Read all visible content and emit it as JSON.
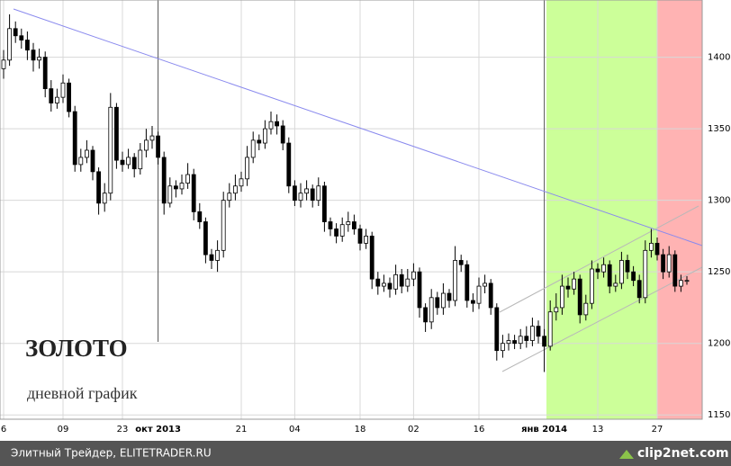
{
  "chart_data": {
    "type": "candlestick",
    "title": "ЗОЛОТО",
    "subtitle": "дневной график",
    "source": "Элитный Трейдер, ELITETRADER.RU",
    "watermark": "clip2net.com",
    "categories": [
      "6",
      null,
      null,
      null,
      null,
      null,
      null,
      null,
      null,
      null,
      "09",
      null,
      null,
      null,
      null,
      null,
      null,
      null,
      null,
      null,
      "23",
      null,
      null,
      null,
      null,
      null,
      "окт 2013",
      null,
      null,
      null,
      null,
      null,
      null,
      null,
      null,
      null,
      null,
      null,
      null,
      null,
      "21",
      null,
      null,
      null,
      null,
      null,
      null,
      null,
      null,
      "04",
      null,
      null,
      null,
      null,
      null,
      null,
      null,
      null,
      null,
      null,
      "18",
      null,
      null,
      null,
      null,
      null,
      null,
      null,
      null,
      "02",
      null,
      null,
      null,
      null,
      null,
      null,
      null,
      null,
      null,
      null,
      "16",
      null,
      null,
      null,
      null,
      null,
      null,
      null,
      null,
      null,
      null,
      "янв 2014",
      null,
      null,
      null,
      null,
      null,
      null,
      null,
      null,
      "13",
      null,
      null,
      null,
      null,
      null,
      null,
      null,
      null,
      null,
      "27",
      null,
      null,
      null,
      null,
      null
    ],
    "open": [
      1392,
      1398,
      1420,
      1415,
      1412,
      1405,
      1398,
      1400,
      1378,
      1368,
      1372,
      1382,
      1362,
      1325,
      1330,
      1335,
      1320,
      1298,
      1305,
      1365,
      1328,
      1325,
      1330,
      1322,
      1335,
      1342,
      1345,
      1330,
      1298,
      1310,
      1308,
      1312,
      1318,
      1292,
      1285,
      1262,
      1258,
      1265,
      1300,
      1305,
      1310,
      1315,
      1330,
      1342,
      1340,
      1350,
      1355,
      1352,
      1340,
      1310,
      1300,
      1305,
      1308,
      1300,
      1310,
      1285,
      1280,
      1275,
      1283,
      1285,
      1280,
      1270,
      1275,
      1245,
      1240,
      1242,
      1238,
      1248,
      1240,
      1245,
      1250,
      1225,
      1215,
      1232,
      1225,
      1235,
      1230,
      1258,
      1255,
      1230,
      1228,
      1240,
      1242,
      1225,
      1195,
      1200,
      1202,
      1200,
      1205,
      1202,
      1212,
      1205,
      1198,
      1222,
      1225,
      1240,
      1238,
      1245,
      1220,
      1228,
      1252,
      1250,
      1255,
      1240,
      1242,
      1258,
      1250,
      1244,
      1232,
      1265,
      1270,
      1262,
      1250,
      1262,
      1240,
      1244
    ],
    "high": [
      1405,
      1430,
      1425,
      1420,
      1418,
      1410,
      1406,
      1404,
      1384,
      1378,
      1388,
      1385,
      1366,
      1336,
      1342,
      1338,
      1323,
      1312,
      1375,
      1368,
      1334,
      1336,
      1333,
      1340,
      1350,
      1352,
      1348,
      1334,
      1316,
      1314,
      1318,
      1326,
      1322,
      1298,
      1288,
      1266,
      1272,
      1306,
      1312,
      1318,
      1320,
      1338,
      1348,
      1346,
      1356,
      1362,
      1360,
      1356,
      1344,
      1314,
      1312,
      1314,
      1311,
      1316,
      1313,
      1288,
      1284,
      1288,
      1292,
      1290,
      1283,
      1280,
      1278,
      1250,
      1248,
      1246,
      1255,
      1252,
      1252,
      1256,
      1253,
      1228,
      1238,
      1236,
      1242,
      1238,
      1268,
      1262,
      1258,
      1235,
      1246,
      1248,
      1245,
      1228,
      1206,
      1207,
      1206,
      1210,
      1212,
      1218,
      1216,
      1210,
      1230,
      1235,
      1248,
      1246,
      1250,
      1248,
      1234,
      1258,
      1256,
      1260,
      1258,
      1248,
      1264,
      1262,
      1254,
      1248,
      1272,
      1280,
      1274,
      1266,
      1268,
      1265,
      1248,
      1247
    ],
    "low": [
      1385,
      1394,
      1410,
      1406,
      1398,
      1390,
      1392,
      1372,
      1362,
      1364,
      1368,
      1358,
      1320,
      1320,
      1326,
      1314,
      1290,
      1292,
      1300,
      1322,
      1320,
      1322,
      1316,
      1318,
      1330,
      1336,
      1325,
      1290,
      1295,
      1302,
      1304,
      1308,
      1286,
      1280,
      1256,
      1252,
      1250,
      1260,
      1295,
      1300,
      1306,
      1310,
      1326,
      1335,
      1336,
      1346,
      1346,
      1335,
      1305,
      1296,
      1295,
      1300,
      1295,
      1296,
      1278,
      1275,
      1270,
      1271,
      1278,
      1276,
      1265,
      1266,
      1238,
      1234,
      1236,
      1232,
      1234,
      1235,
      1236,
      1240,
      1218,
      1208,
      1210,
      1220,
      1220,
      1225,
      1226,
      1250,
      1225,
      1222,
      1224,
      1235,
      1220,
      1188,
      1190,
      1195,
      1196,
      1196,
      1197,
      1198,
      1200,
      1180,
      1195,
      1216,
      1220,
      1232,
      1234,
      1214,
      1216,
      1224,
      1245,
      1246,
      1235,
      1236,
      1238,
      1245,
      1240,
      1228,
      1228,
      1260,
      1258,
      1245,
      1246,
      1236,
      1236,
      1241
    ],
    "close": [
      1398,
      1420,
      1415,
      1412,
      1405,
      1398,
      1400,
      1378,
      1368,
      1372,
      1382,
      1362,
      1325,
      1330,
      1335,
      1320,
      1298,
      1305,
      1365,
      1328,
      1325,
      1330,
      1322,
      1335,
      1342,
      1345,
      1330,
      1298,
      1310,
      1308,
      1312,
      1318,
      1292,
      1285,
      1262,
      1258,
      1265,
      1300,
      1305,
      1310,
      1315,
      1330,
      1342,
      1340,
      1350,
      1355,
      1352,
      1340,
      1310,
      1300,
      1305,
      1308,
      1300,
      1310,
      1285,
      1280,
      1275,
      1283,
      1285,
      1280,
      1270,
      1275,
      1245,
      1240,
      1242,
      1238,
      1248,
      1240,
      1245,
      1250,
      1225,
      1215,
      1232,
      1225,
      1235,
      1230,
      1258,
      1255,
      1230,
      1228,
      1240,
      1242,
      1225,
      1195,
      1200,
      1202,
      1200,
      1205,
      1202,
      1212,
      1205,
      1198,
      1222,
      1225,
      1240,
      1238,
      1245,
      1220,
      1228,
      1252,
      1250,
      1255,
      1240,
      1242,
      1258,
      1250,
      1244,
      1232,
      1265,
      1270,
      1262,
      1250,
      1262,
      1240,
      1244,
      1244
    ],
    "ylim": [
      1147,
      1440
    ],
    "yticks": [
      1150,
      1200,
      1250,
      1300,
      1350,
      1400
    ],
    "grid": true,
    "up_color": "#ffffff",
    "down_color": "#000000"
  }
}
